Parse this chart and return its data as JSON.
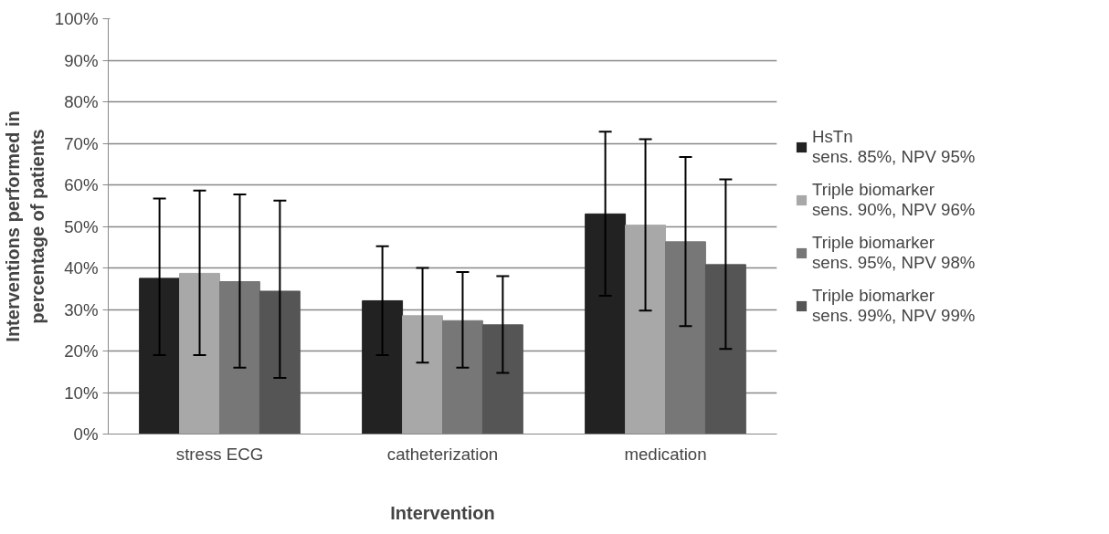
{
  "chart_data": {
    "type": "bar",
    "xlabel": "Intervention",
    "ylabel": "Interventions performed in\npercentage of patients",
    "categories": [
      "stress ECG",
      "catheterization",
      "medication"
    ],
    "ylim": [
      0,
      100
    ],
    "yticks": [
      {
        "value": 0,
        "label": "0%"
      },
      {
        "value": 10,
        "label": "10%"
      },
      {
        "value": 20,
        "label": "20%"
      },
      {
        "value": 30,
        "label": "30%"
      },
      {
        "value": 40,
        "label": "40%"
      },
      {
        "value": 50,
        "label": "50%"
      },
      {
        "value": 60,
        "label": "60%"
      },
      {
        "value": 70,
        "label": "70%"
      },
      {
        "value": 80,
        "label": "80%"
      },
      {
        "value": 90,
        "label": "90%"
      },
      {
        "value": 100,
        "label": "100%"
      }
    ],
    "grid": "y",
    "legend": "right",
    "series": [
      {
        "name": "HsTn\nsens. 85%, NPV 95%",
        "color": "#222222",
        "values": [
          37.5,
          32.1,
          53.0
        ],
        "errors": [
          [
            19,
            56.7
          ],
          [
            19,
            45.2
          ],
          [
            33.3,
            72.8
          ]
        ]
      },
      {
        "name": "Triple biomarker\nsens. 90%, NPV 96%",
        "color": "#a8a8a8",
        "values": [
          38.7,
          28.5,
          50.3
        ],
        "errors": [
          [
            19,
            58.6
          ],
          [
            17.2,
            40
          ],
          [
            29.7,
            71
          ]
        ]
      },
      {
        "name": "Triple biomarker\nsens. 95%, NPV 98%",
        "color": "#777777",
        "values": [
          36.7,
          27.3,
          46.3
        ],
        "errors": [
          [
            16,
            57.7
          ],
          [
            16,
            39
          ],
          [
            26,
            66.7
          ]
        ]
      },
      {
        "name": "Triple biomarker\nsens. 99%, NPV 99%",
        "color": "#555555",
        "values": [
          34.4,
          26.3,
          40.8
        ],
        "errors": [
          [
            13.5,
            56.2
          ],
          [
            14.7,
            38
          ],
          [
            20.5,
            61.3
          ]
        ]
      }
    ]
  }
}
